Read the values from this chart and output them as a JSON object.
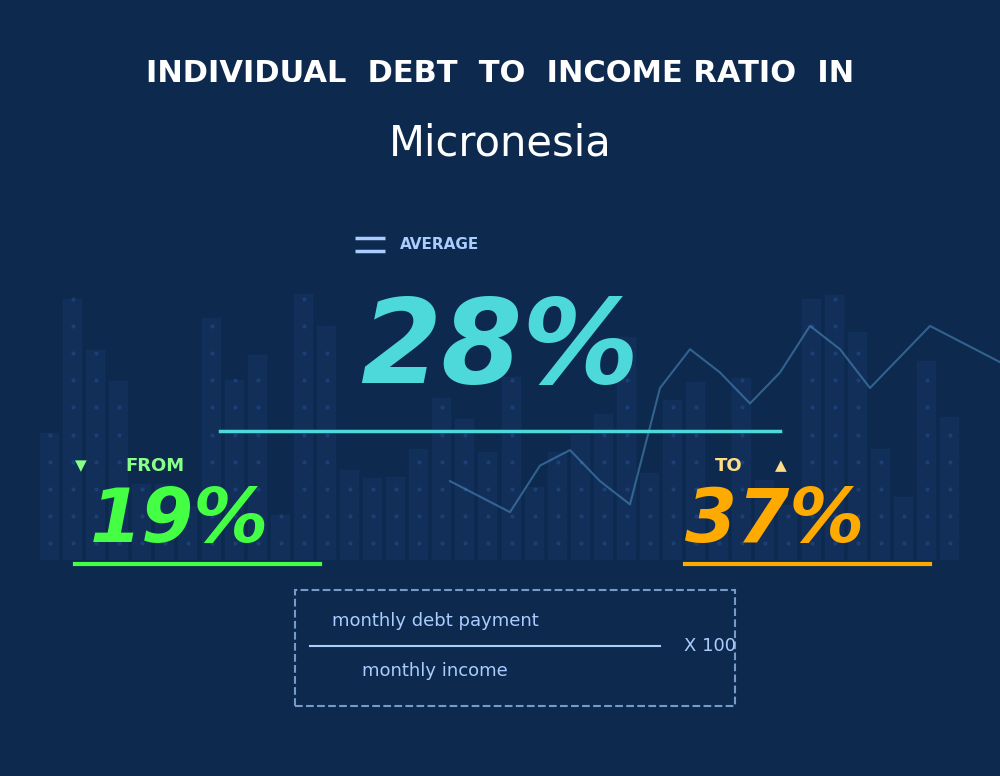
{
  "title_line1": "INDIVIDUAL  DEBT  TO  INCOME RATIO  IN",
  "title_line2": "Micronesia",
  "avg_label": "AVERAGE",
  "avg_value": "28%",
  "from_label": "FROM",
  "from_value": "19%",
  "to_label": "TO",
  "to_value": "37%",
  "formula_top": "monthly debt payment",
  "formula_bottom": "monthly income",
  "formula_right": "X 100",
  "bg_color": "#0d2a4e",
  "title1_color": "#ffffff",
  "title2_color": "#ffffff",
  "avg_label_color": "#aaccff",
  "avg_value_color": "#4dd9d9",
  "from_label_color": "#88ff88",
  "from_value_color": "#44ff44",
  "to_label_color": "#ffdd88",
  "to_value_color": "#ffaa00",
  "underline_avg_color": "#4dd9d9",
  "underline_from_color": "#44ff44",
  "underline_to_color": "#ffaa00",
  "formula_color": "#aaccff",
  "dashed_box_color": "#7799cc",
  "bar_color": "#1a3a6e",
  "dot_color": "#2a5aaa",
  "line_color": "#5599cc"
}
